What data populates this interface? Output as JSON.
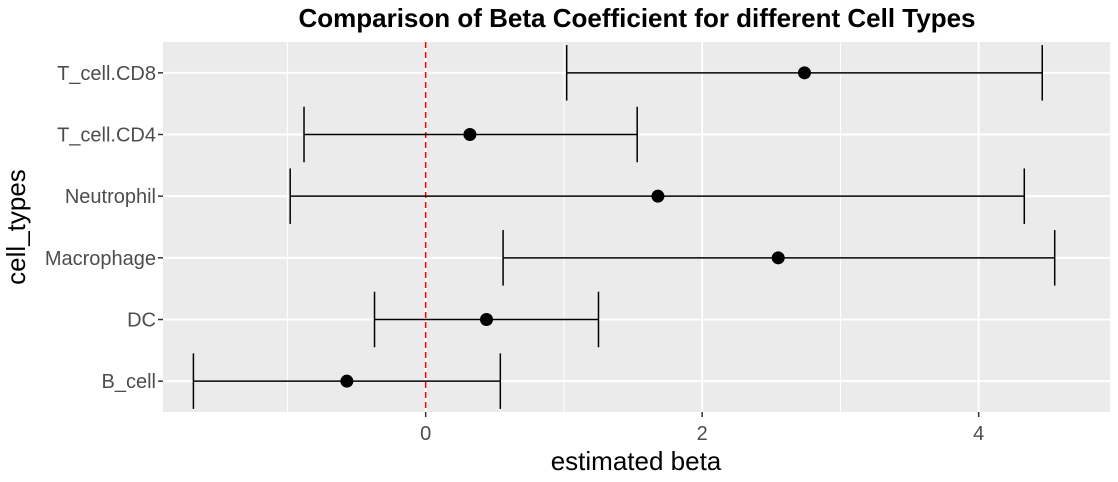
{
  "chart_data": {
    "type": "errorbar",
    "title": "Comparison of Beta Coefficient for different Cell Types",
    "xlabel": "estimated beta",
    "ylabel": "cell_types",
    "xlim": [
      -1.9,
      4.95
    ],
    "x_ticks": [
      0,
      2,
      4
    ],
    "x_tick_labels": [
      "0",
      "2",
      "4"
    ],
    "categories": [
      "B_cell",
      "DC",
      "Macrophage",
      "Neutrophil",
      "T_cell.CD4",
      "T_cell.CD8"
    ],
    "estimates": [
      -0.57,
      0.44,
      2.55,
      1.68,
      0.32,
      2.74
    ],
    "lower": [
      -1.68,
      -0.37,
      0.56,
      -0.98,
      -0.88,
      1.02
    ],
    "upper": [
      0.54,
      1.25,
      4.55,
      4.33,
      1.53,
      4.46
    ],
    "reference_line": {
      "x": 0,
      "color": "#ff0000",
      "style": "dashed"
    },
    "grid": true,
    "colors": {
      "panel": "#ebebeb",
      "grid": "#ffffff",
      "points": "#000000"
    }
  }
}
